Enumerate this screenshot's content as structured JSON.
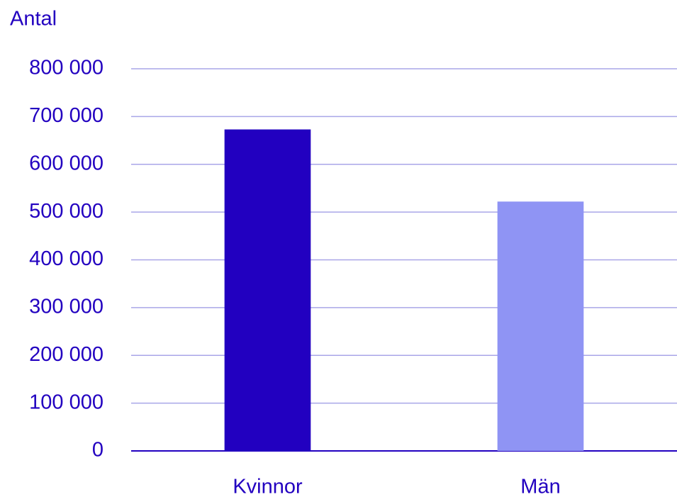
{
  "chart_data": {
    "type": "bar",
    "y_label": "Antal",
    "categories": [
      "Kvinnor",
      "Män"
    ],
    "values": [
      673000,
      522000
    ],
    "colors": [
      "#2200c0",
      "#8f94f4"
    ],
    "ylim": [
      0,
      800000
    ],
    "yticks": [
      0,
      {
        "value": 100000,
        "label": "100 000"
      },
      {
        "value": 200000,
        "label": "200 000"
      },
      {
        "value": 300000,
        "label": "300 000"
      },
      {
        "value": 400000,
        "label": "400 000"
      },
      {
        "value": 500000,
        "label": "500 000"
      },
      {
        "value": 600000,
        "label": "600 000"
      },
      {
        "value": 700000,
        "label": "700 000"
      },
      {
        "value": 800000,
        "label": "800 000"
      }
    ],
    "grid": true
  }
}
